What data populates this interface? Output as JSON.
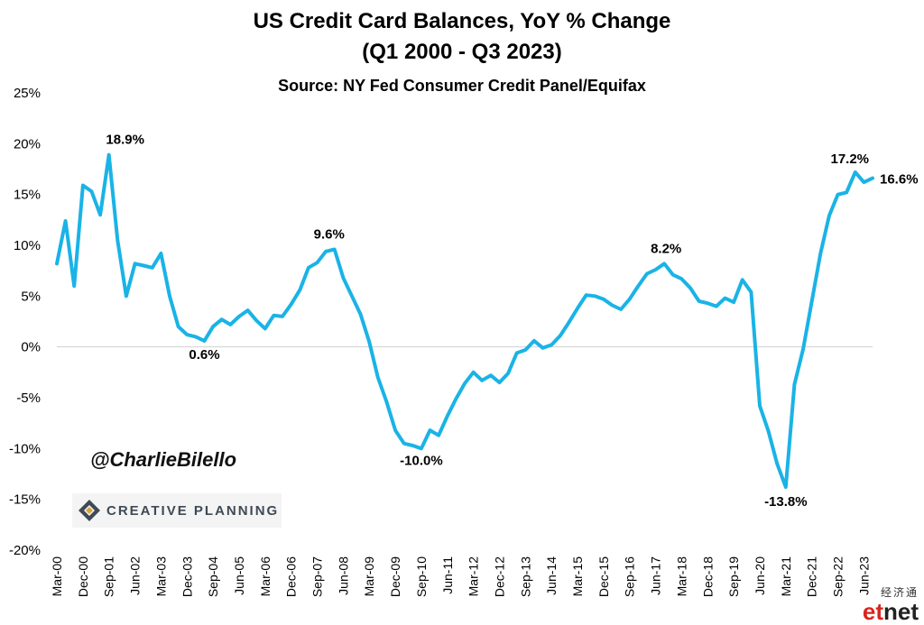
{
  "header": {
    "title_line1": "US Credit Card Balances, YoY % Change",
    "title_line2": "(Q1 2000 - Q3 2023)",
    "subtitle": "Source: NY Fed Consumer Credit Panel/Equifax"
  },
  "watermarks": {
    "handle": "@CharlieBilello",
    "brand": "CREATIVE PLANNING",
    "etnet_cn": "经济通",
    "etnet_main_a": "et",
    "etnet_main_b": "net"
  },
  "chart_data": {
    "type": "line",
    "title": "US Credit Card Balances, YoY % Change",
    "line_color": "#1ab3e6",
    "ylim": [
      -20,
      25
    ],
    "yticks": [
      -20,
      -15,
      -10,
      -5,
      0,
      5,
      10,
      15,
      20,
      25
    ],
    "ytick_labels": [
      "-20%",
      "-15%",
      "-10%",
      "-5%",
      "0%",
      "5%",
      "10%",
      "15%",
      "20%",
      "25%"
    ],
    "xtick_labels": [
      "Mar-00",
      "Dec-00",
      "Sep-01",
      "Jun-02",
      "Mar-03",
      "Dec-03",
      "Sep-04",
      "Jun-05",
      "Mar-06",
      "Dec-06",
      "Sep-07",
      "Jun-08",
      "Mar-09",
      "Dec-09",
      "Sep-10",
      "Jun-11",
      "Mar-12",
      "Dec-12",
      "Sep-13",
      "Jun-14",
      "Mar-15",
      "Dec-15",
      "Sep-16",
      "Jun-17",
      "Mar-18",
      "Dec-18",
      "Sep-19",
      "Jun-20",
      "Mar-21",
      "Dec-21",
      "Sep-22",
      "Jun-23"
    ],
    "grid": false,
    "series": [
      {
        "values": [
          8.2,
          12.4,
          6.0,
          15.9,
          15.3,
          13.0,
          18.9,
          10.5,
          5.0,
          8.2,
          8.0,
          7.8,
          9.2,
          5.0,
          2.0,
          1.2,
          1.0,
          0.6,
          2.0,
          2.7,
          2.2,
          3.0,
          3.6,
          2.6,
          1.8,
          3.1,
          3.0,
          4.2,
          5.6,
          7.8,
          8.3,
          9.4,
          9.6,
          6.8,
          5.0,
          3.2,
          0.5,
          -3.0,
          -5.4,
          -8.2,
          -9.5,
          -9.7,
          -10.0,
          -8.2,
          -8.7,
          -6.8,
          -5.1,
          -3.6,
          -2.5,
          -3.3,
          -2.8,
          -3.5,
          -2.6,
          -0.6,
          -0.3,
          0.6,
          -0.1,
          0.2,
          1.1,
          2.4,
          3.8,
          5.1,
          5.0,
          4.7,
          4.1,
          3.7,
          4.7,
          6.0,
          7.2,
          7.6,
          8.2,
          7.1,
          6.7,
          5.8,
          4.5,
          4.3,
          4.0,
          4.8,
          4.4,
          6.6,
          5.4,
          -5.8,
          -8.3,
          -11.5,
          -13.8,
          -3.7,
          -0.2,
          4.5,
          9.2,
          12.9,
          15.0,
          15.2,
          17.2,
          16.2,
          16.6
        ]
      }
    ],
    "annotations": [
      {
        "index": 6,
        "value": 18.9,
        "label": "18.9%"
      },
      {
        "index": 17,
        "value": 0.6,
        "label": "0.6%"
      },
      {
        "index": 32,
        "value": 9.6,
        "label": "9.6%"
      },
      {
        "index": 42,
        "value": -10.0,
        "label": "-10.0%"
      },
      {
        "index": 70,
        "value": 8.2,
        "label": "8.2%"
      },
      {
        "index": 84,
        "value": -13.8,
        "label": "-13.8%"
      },
      {
        "index": 92,
        "value": 17.2,
        "label": "17.2%"
      },
      {
        "index": 94,
        "value": 16.6,
        "label": "16.6%"
      }
    ]
  }
}
